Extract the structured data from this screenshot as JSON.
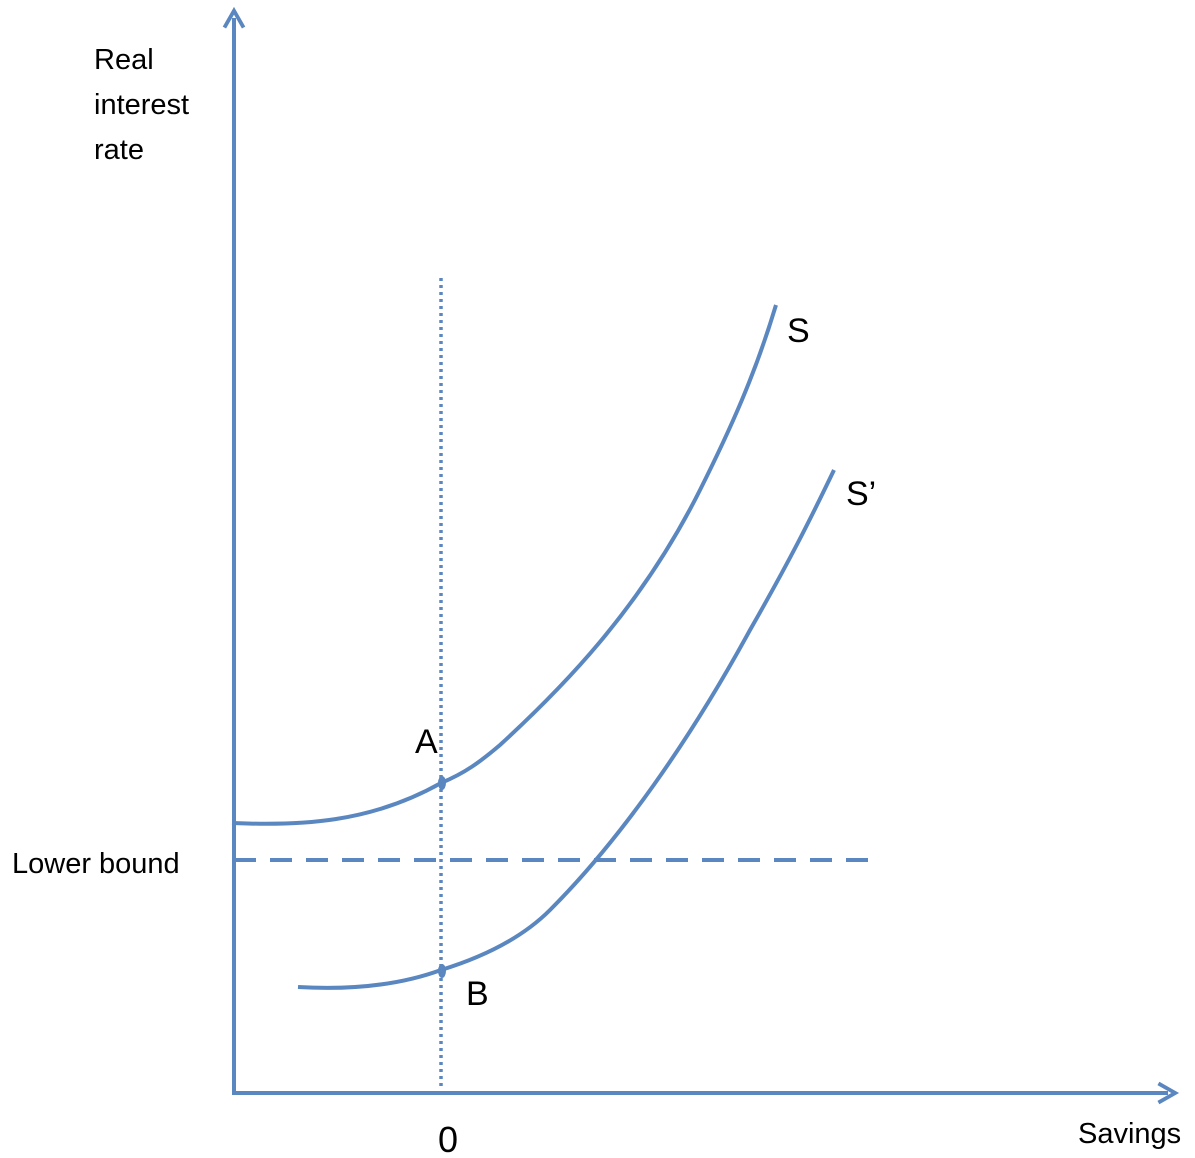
{
  "axes": {
    "y_label_lines": [
      "Real",
      "interest",
      "rate"
    ],
    "x_label": "Savings",
    "x_zero_label": "0"
  },
  "lines": {
    "lower_bound_label": "Lower bound"
  },
  "curves": {
    "s_label": "S",
    "s_prime_label": "S’"
  },
  "points": {
    "a_label": "A",
    "b_label": "B"
  },
  "colors": {
    "stroke": "#5b87c0",
    "text": "#000000"
  }
}
